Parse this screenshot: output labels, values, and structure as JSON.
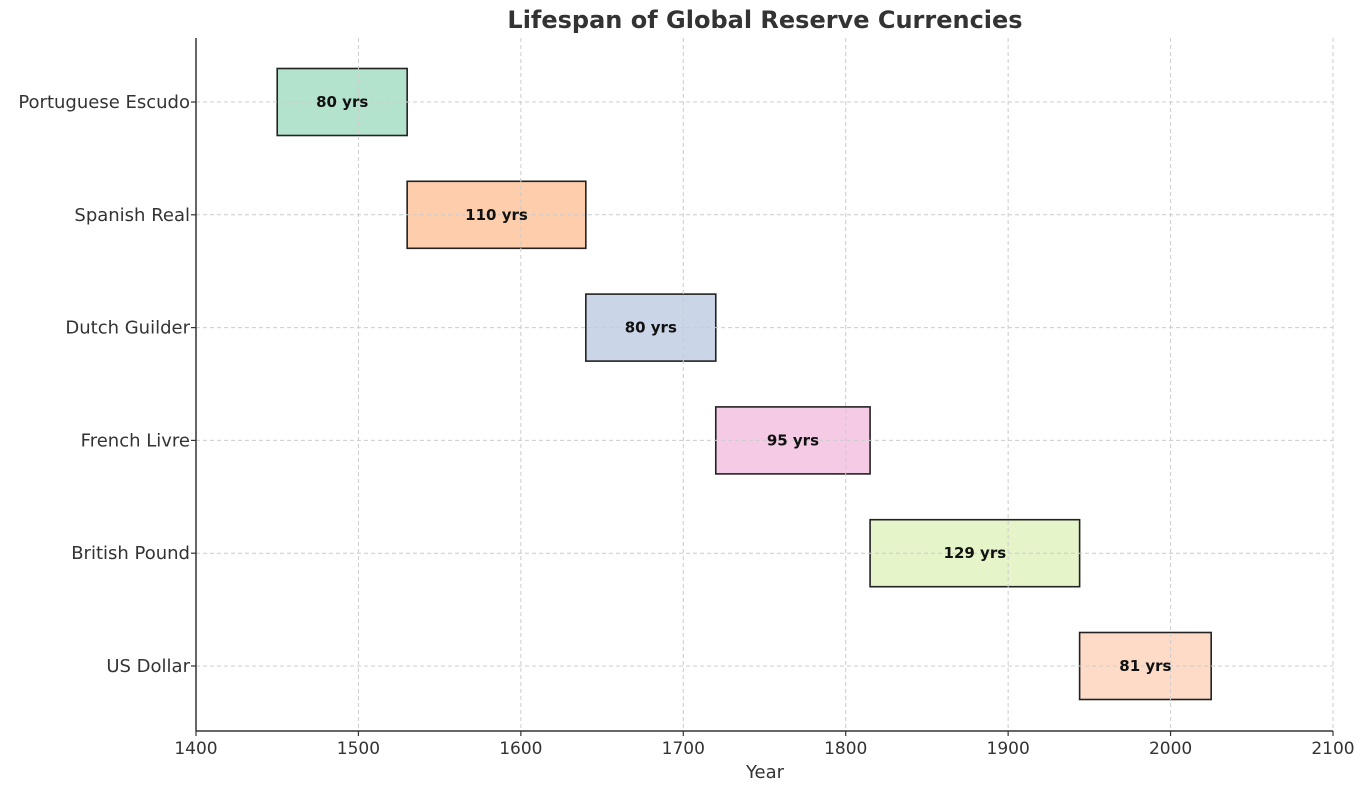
{
  "chart_data": {
    "type": "bar",
    "orientation": "horizontal-gantt",
    "title": "Lifespan of Global Reserve Currencies",
    "xlabel": "Year",
    "ylabel": "",
    "xlim": [
      1400,
      2100
    ],
    "xticks": [
      1400,
      1500,
      1600,
      1700,
      1800,
      1900,
      2000,
      2100
    ],
    "grid": true,
    "categories": [
      "Portuguese Escudo",
      "Spanish Real",
      "Dutch Guilder",
      "French Livre",
      "British Pound",
      "US Dollar"
    ],
    "series": [
      {
        "category": "Portuguese Escudo",
        "start": 1450,
        "end": 1530,
        "label": "80 yrs",
        "color": "#b3e2cd"
      },
      {
        "category": "Spanish Real",
        "start": 1530,
        "end": 1640,
        "label": "110 yrs",
        "color": "#fdcdac"
      },
      {
        "category": "Dutch Guilder",
        "start": 1640,
        "end": 1720,
        "label": "80 yrs",
        "color": "#cbd5e8"
      },
      {
        "category": "French Livre",
        "start": 1720,
        "end": 1815,
        "label": "95 yrs",
        "color": "#f4cae4"
      },
      {
        "category": "British Pound",
        "start": 1815,
        "end": 1944,
        "label": "129 yrs",
        "color": "#e6f5c9"
      },
      {
        "category": "US Dollar",
        "start": 1944,
        "end": 2025,
        "label": "81 yrs",
        "color": "#fddbc7"
      }
    ]
  }
}
